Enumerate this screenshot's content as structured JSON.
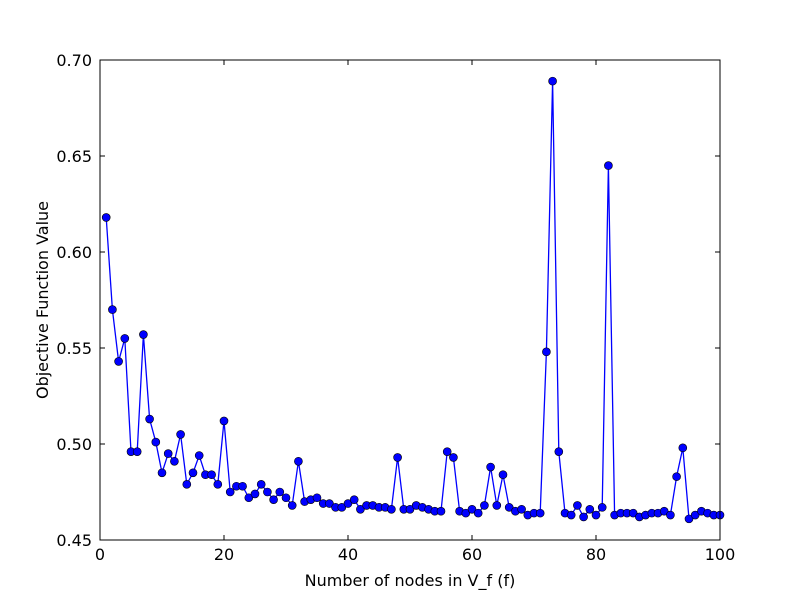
{
  "chart_data": {
    "type": "line",
    "xlabel": "Number of nodes in V_f (f)",
    "ylabel": "Objective Function Value",
    "xlim": [
      0,
      100
    ],
    "ylim": [
      0.45,
      0.7
    ],
    "x_ticks": [
      0,
      20,
      40,
      60,
      80,
      100
    ],
    "y_ticks": [
      0.45,
      0.5,
      0.55,
      0.6,
      0.65,
      0.7
    ],
    "x_tick_labels": [
      "0",
      "20",
      "40",
      "60",
      "80",
      "100"
    ],
    "y_tick_labels": [
      "0.45",
      "0.50",
      "0.55",
      "0.60",
      "0.65",
      "0.70"
    ],
    "grid": false,
    "line_color": "#0000ff",
    "marker_color": "#0000ff",
    "series": [
      {
        "x": [
          1,
          2,
          3,
          4,
          5,
          6,
          7,
          8,
          9,
          10,
          11,
          12,
          13,
          14,
          15,
          16,
          17,
          18,
          19,
          20,
          21,
          22,
          23,
          24,
          25,
          26,
          27,
          28,
          29,
          30,
          31,
          32,
          33,
          34,
          35,
          36,
          37,
          38,
          39,
          40,
          41,
          42,
          43,
          44,
          45,
          46,
          47,
          48,
          49,
          50,
          51,
          52,
          53,
          54,
          55,
          56,
          57,
          58,
          59,
          60,
          61,
          62,
          63,
          64,
          65,
          66,
          67,
          68,
          69,
          70,
          71,
          72,
          73,
          74,
          75,
          76,
          77,
          78,
          79,
          80,
          81,
          82,
          83,
          84,
          85,
          86,
          87,
          88,
          89,
          90,
          91,
          92,
          93,
          94,
          95,
          96,
          97,
          98,
          99,
          100
        ],
        "values": [
          0.618,
          0.57,
          0.543,
          0.555,
          0.496,
          0.496,
          0.557,
          0.513,
          0.501,
          0.485,
          0.495,
          0.491,
          0.505,
          0.479,
          0.485,
          0.494,
          0.484,
          0.484,
          0.479,
          0.512,
          0.475,
          0.478,
          0.478,
          0.472,
          0.474,
          0.479,
          0.475,
          0.471,
          0.475,
          0.472,
          0.468,
          0.491,
          0.47,
          0.471,
          0.472,
          0.469,
          0.469,
          0.467,
          0.467,
          0.469,
          0.471,
          0.466,
          0.468,
          0.468,
          0.467,
          0.467,
          0.466,
          0.493,
          0.466,
          0.466,
          0.468,
          0.467,
          0.466,
          0.465,
          0.465,
          0.496,
          0.493,
          0.465,
          0.464,
          0.466,
          0.464,
          0.468,
          0.488,
          0.468,
          0.484,
          0.467,
          0.465,
          0.466,
          0.463,
          0.464,
          0.464,
          0.548,
          0.689,
          0.496,
          0.464,
          0.463,
          0.468,
          0.462,
          0.466,
          0.463,
          0.467,
          0.645,
          0.463,
          0.464,
          0.464,
          0.464,
          0.462,
          0.463,
          0.464,
          0.464,
          0.465,
          0.463,
          0.483,
          0.498,
          0.461,
          0.463,
          0.465,
          0.464,
          0.463,
          0.463
        ]
      }
    ]
  }
}
